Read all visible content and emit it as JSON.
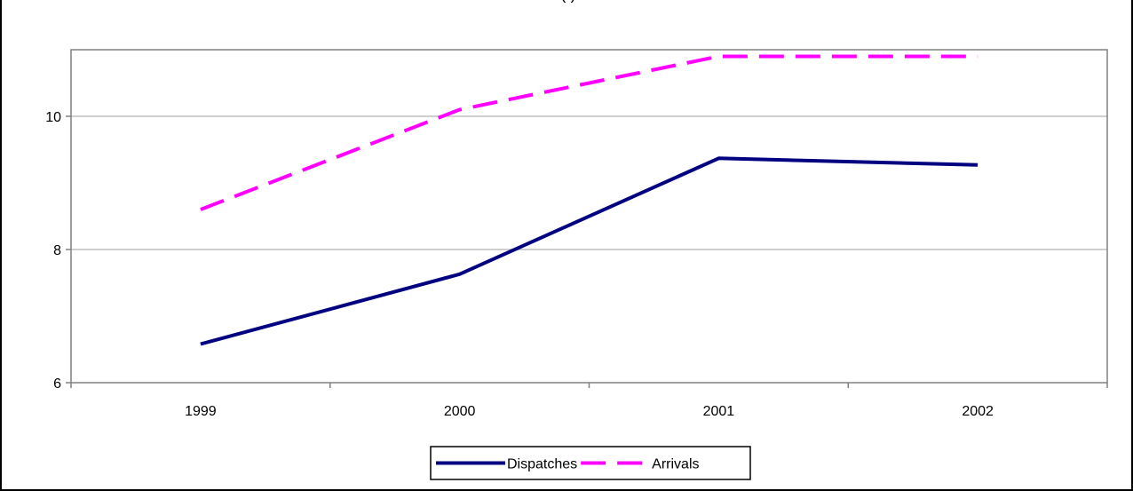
{
  "chart_data": {
    "type": "line",
    "title": "(                    )",
    "xlabel": "",
    "ylabel": "",
    "categories": [
      "1999",
      "2000",
      "2001",
      "2002"
    ],
    "ylim": [
      6,
      11
    ],
    "yticks": [
      "6",
      "8",
      "10"
    ],
    "grid": "horizontal",
    "legend_position": "bottom",
    "series": [
      {
        "name": "Dispatches",
        "values": [
          6.58,
          7.63,
          9.37,
          9.27
        ],
        "color": "#000080",
        "style": "solid"
      },
      {
        "name": "Arrivals",
        "values": [
          8.6,
          10.1,
          10.9,
          10.9
        ],
        "color": "#ff00ff",
        "style": "dashed"
      }
    ]
  }
}
